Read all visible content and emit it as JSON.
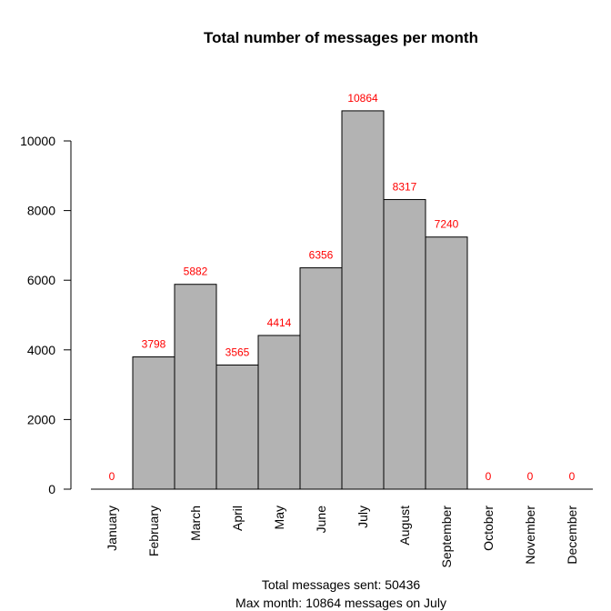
{
  "chart_data": {
    "type": "bar",
    "title": "Total number of messages per month",
    "xlabel": "",
    "ylabel": "",
    "categories": [
      "January",
      "February",
      "March",
      "April",
      "May",
      "June",
      "July",
      "August",
      "September",
      "October",
      "November",
      "December"
    ],
    "values": [
      0,
      3798,
      5882,
      3565,
      4414,
      6356,
      10864,
      8317,
      7240,
      0,
      0,
      0
    ],
    "ylim": [
      0,
      12000
    ],
    "yticks": [
      0,
      2000,
      4000,
      6000,
      8000,
      10000
    ],
    "grid": false,
    "bar_color": "#b3b3b3",
    "label_color": "#ff0000"
  },
  "footer": {
    "line1": "Total messages sent: 50436",
    "line2": "Max month: 10864 messages on July"
  }
}
